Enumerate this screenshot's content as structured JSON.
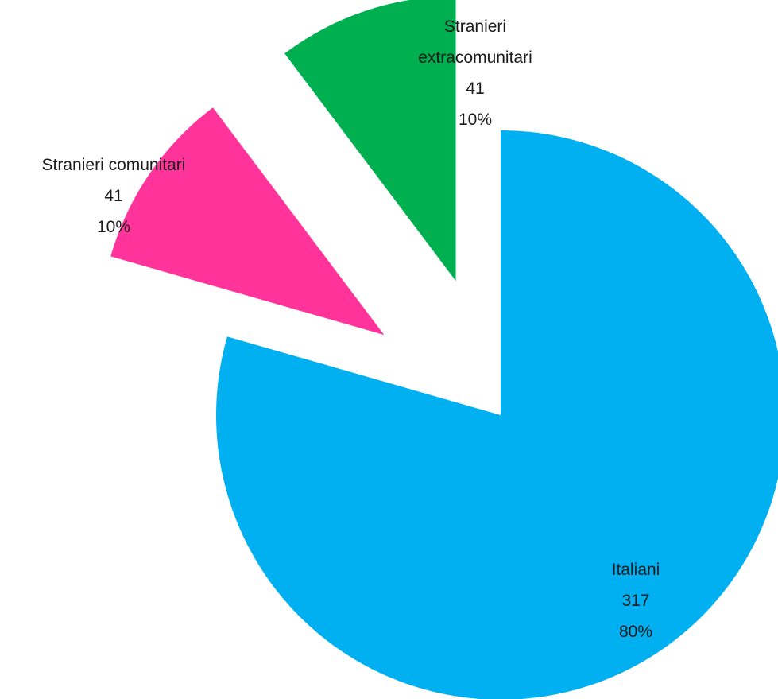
{
  "chart_data": {
    "type": "pie",
    "categories": [
      "Italiani",
      "Stranieri comunitari",
      "Stranieri extracomunitari"
    ],
    "values": [
      317,
      41,
      41
    ],
    "percentages": [
      {
        "value": 80,
        "label": "80%"
      },
      {
        "value": 10,
        "label": "10%"
      },
      {
        "value": 10,
        "label": "10%"
      }
    ],
    "colors": [
      "#00b0f0",
      "#ff3399",
      "#00b050"
    ],
    "explode": [
      false,
      true,
      true
    ]
  }
}
